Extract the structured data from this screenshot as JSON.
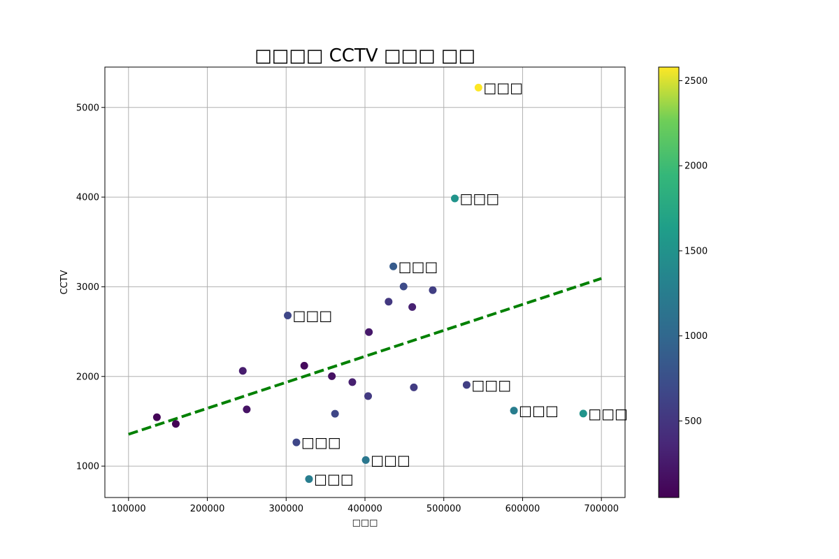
{
  "chart_data": {
    "type": "scatter",
    "title": "□□□□ CCTV □□□ □□",
    "xlabel": "□□□",
    "ylabel": "CCTV",
    "xlim": [
      70000,
      730000
    ],
    "ylim": [
      650,
      5450
    ],
    "x_ticks": [
      100000,
      200000,
      300000,
      400000,
      500000,
      600000,
      700000
    ],
    "y_ticks": [
      1000,
      2000,
      3000,
      4000,
      5000
    ],
    "x_tick_labels": [
      "100000",
      "200000",
      "300000",
      "400000",
      "500000",
      "600000",
      "700000"
    ],
    "y_tick_labels": [
      "1000",
      "2000",
      "3000",
      "4000",
      "5000"
    ],
    "grid": true,
    "colormap": "viridis",
    "colorbar": {
      "min": 50,
      "max": 2580,
      "ticks": [
        500,
        1000,
        1500,
        2000,
        2500
      ],
      "tick_labels": [
        "500",
        "1000",
        "1500",
        "2000",
        "2500"
      ]
    },
    "trendline": {
      "style": "dashed",
      "color": "#008000",
      "points": [
        [
          100000,
          1355
        ],
        [
          700000,
          3093
        ]
      ]
    },
    "points": [
      {
        "x": 544000,
        "y": 5221,
        "c": 2580,
        "label": "□□□"
      },
      {
        "x": 514000,
        "y": 3985,
        "c": 1520,
        "label": "□□□"
      },
      {
        "x": 436000,
        "y": 3227,
        "c": 870,
        "label": "□□□"
      },
      {
        "x": 302000,
        "y": 2680,
        "c": 660,
        "label": "□□□"
      },
      {
        "x": 529000,
        "y": 1906,
        "c": 590,
        "label": "□□□"
      },
      {
        "x": 589000,
        "y": 1619,
        "c": 1260,
        "label": "□□□"
      },
      {
        "x": 677000,
        "y": 1586,
        "c": 1520,
        "label": "□□□"
      },
      {
        "x": 313000,
        "y": 1265,
        "c": 660,
        "label": "□□□"
      },
      {
        "x": 401000,
        "y": 1068,
        "c": 1180,
        "label": "□□□"
      },
      {
        "x": 329000,
        "y": 856,
        "c": 1260,
        "label": "□□□"
      },
      {
        "x": 449000,
        "y": 3003,
        "c": 700,
        "label": ""
      },
      {
        "x": 486000,
        "y": 2962,
        "c": 580,
        "label": ""
      },
      {
        "x": 430000,
        "y": 2834,
        "c": 520,
        "label": ""
      },
      {
        "x": 460000,
        "y": 2774,
        "c": 310,
        "label": ""
      },
      {
        "x": 405000,
        "y": 2495,
        "c": 240,
        "label": ""
      },
      {
        "x": 323000,
        "y": 2120,
        "c": 120,
        "label": ""
      },
      {
        "x": 245000,
        "y": 2062,
        "c": 280,
        "label": ""
      },
      {
        "x": 358000,
        "y": 2003,
        "c": 180,
        "label": ""
      },
      {
        "x": 384000,
        "y": 1937,
        "c": 300,
        "label": ""
      },
      {
        "x": 462000,
        "y": 1878,
        "c": 560,
        "label": ""
      },
      {
        "x": 404000,
        "y": 1781,
        "c": 540,
        "label": ""
      },
      {
        "x": 250000,
        "y": 1633,
        "c": 200,
        "label": ""
      },
      {
        "x": 362000,
        "y": 1584,
        "c": 650,
        "label": ""
      },
      {
        "x": 136000,
        "y": 1545,
        "c": 80,
        "label": ""
      },
      {
        "x": 160000,
        "y": 1471,
        "c": 70,
        "label": ""
      }
    ]
  }
}
